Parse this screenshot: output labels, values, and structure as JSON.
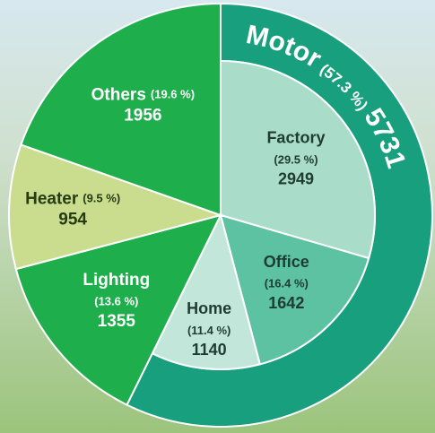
{
  "chart_data": {
    "type": "pie",
    "slices": [
      {
        "name": "Motor",
        "share": 57.3,
        "share_label": "(57.3 %)",
        "value": 5731,
        "color": "#18a07e",
        "children": [
          {
            "name": "Factory",
            "share": 29.5,
            "share_label": "(29.5 %)",
            "value": 2949,
            "color": "#a9dcc9"
          },
          {
            "name": "Office",
            "share": 16.4,
            "share_label": "(16.4 %)",
            "value": 1642,
            "color": "#5cc2a2"
          },
          {
            "name": "Home",
            "share": 11.4,
            "share_label": "(11.4 %)",
            "value": 1140,
            "color": "#c2e7da"
          }
        ]
      },
      {
        "name": "Lighting",
        "share": 13.6,
        "share_label": "(13.6 %)",
        "value": 1355,
        "color": "#1fae4c"
      },
      {
        "name": "Heater",
        "share": 9.5,
        "share_label": "(9.5 %)",
        "value": 954,
        "color": "#cadd8e"
      },
      {
        "name": "Others",
        "share": 19.6,
        "share_label": "(19.6 %)",
        "value": 1956,
        "color": "#1fae4c"
      }
    ]
  }
}
